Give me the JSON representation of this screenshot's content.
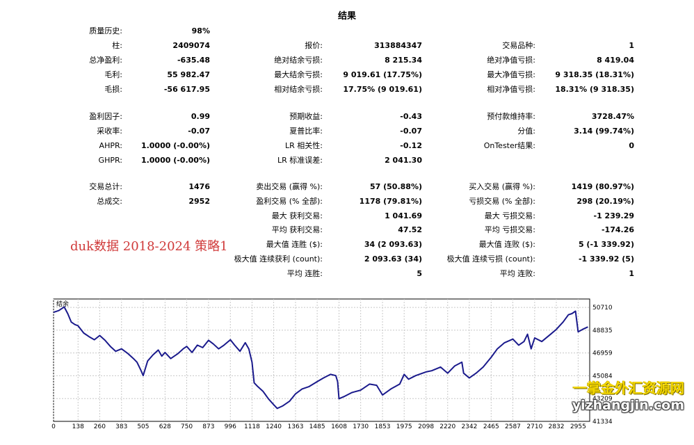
{
  "title": "结果",
  "col1": [
    {
      "label": "质量历史:",
      "value": "98%"
    },
    {
      "label": "柱:",
      "value": "2409074"
    },
    {
      "label": "总净盈利:",
      "value": "-635.48"
    },
    {
      "label": "毛利:",
      "value": "55 982.47"
    },
    {
      "label": "毛损:",
      "value": "-56 617.95"
    },
    {
      "label": "盈利因子:",
      "value": "0.99"
    },
    {
      "label": "采收率:",
      "value": "-0.07"
    },
    {
      "label": "AHPR:",
      "value": "1.0000 (-0.00%)"
    },
    {
      "label": "GHPR:",
      "value": "1.0000 (-0.00%)"
    },
    {
      "label": "交易总计:",
      "value": "1476"
    },
    {
      "label": "总成交:",
      "value": "2952"
    }
  ],
  "col2": [
    {
      "label": "报价:",
      "value": "313884347"
    },
    {
      "label": "绝对结余亏损:",
      "value": "8 215.34"
    },
    {
      "label": "最大结余亏损:",
      "value": "9 019.61 (17.75%)"
    },
    {
      "label": "相对结余亏损:",
      "value": "17.75% (9 019.61)"
    },
    {
      "label": "预期收益:",
      "value": "-0.43"
    },
    {
      "label": "夏普比率:",
      "value": "-0.07"
    },
    {
      "label": "LR 相关性:",
      "value": "-0.12"
    },
    {
      "label": "LR 标准误差:",
      "value": "2 041.30"
    },
    {
      "label": "卖出交易 (赢得 %):",
      "value": "57 (50.88%)"
    },
    {
      "label": "盈利交易 (% 全部):",
      "value": "1178 (79.81%)"
    },
    {
      "label": "最大 获利交易:",
      "value": "1 041.69"
    },
    {
      "label": "平均 获利交易:",
      "value": "47.52"
    },
    {
      "label": "最大值 连胜 ($):",
      "value": "34 (2 093.63)"
    },
    {
      "label": "极大值 连续获利 (count):",
      "value": "2 093.63 (34)"
    },
    {
      "label": "平均 连胜:",
      "value": "5"
    }
  ],
  "col3": [
    {
      "label": "交易品种:",
      "value": "1"
    },
    {
      "label": "绝对净值亏损:",
      "value": "8 419.04"
    },
    {
      "label": "最大净值亏损:",
      "value": "9 318.35 (18.31%)"
    },
    {
      "label": "相对净值亏损:",
      "value": "18.31% (9 318.35)"
    },
    {
      "label": "预付款维持率:",
      "value": "3728.47%"
    },
    {
      "label": "分值:",
      "value": "3.14 (99.74%)"
    },
    {
      "label": "OnTester结果:",
      "value": "0"
    },
    {
      "label": "买入交易 (赢得 %):",
      "value": "1419 (80.97%)"
    },
    {
      "label": "亏损交易 (% 全部):",
      "value": "298 (20.19%)"
    },
    {
      "label": "最大 亏损交易:",
      "value": "-1 239.29"
    },
    {
      "label": "平均 亏损交易:",
      "value": "-174.26"
    },
    {
      "label": "最大值 连败 ($):",
      "value": "5 (-1 339.92)"
    },
    {
      "label": "极大值 连续亏损 (count):",
      "value": "-1 339.92 (5)"
    },
    {
      "label": "平均 连败:",
      "value": "1"
    }
  ],
  "annotation": "duk数据 2018-2024 策略1",
  "watermark": {
    "cn": "一掌金外汇资源网",
    "url": "yizhangjin.com"
  },
  "chart_data": {
    "type": "line",
    "legend": "结余",
    "line_color": "#1a1a8c",
    "x_ticks": [
      "0",
      "138",
      "260",
      "383",
      "505",
      "628",
      "750",
      "873",
      "996",
      "1118",
      "1240",
      "1363",
      "1485",
      "1608",
      "1730",
      "1853",
      "1975",
      "2098",
      "2220",
      "2342",
      "2465",
      "2587",
      "2710",
      "2832",
      "2955"
    ],
    "y_ticks": [
      "50710",
      "48835",
      "46959",
      "45084",
      "43209",
      "41334"
    ],
    "xlim": [
      0,
      3020
    ],
    "ylim": [
      41334,
      51400
    ],
    "grid": true,
    "series": [
      {
        "x": [
          0,
          30,
          60,
          80,
          100,
          120,
          138,
          170,
          200,
          230,
          260,
          290,
          320,
          350,
          383,
          420,
          450,
          470,
          490,
          505,
          530,
          560,
          590,
          610,
          628,
          660,
          700,
          730,
          750,
          780,
          810,
          840,
          873,
          900,
          930,
          960,
          996,
          1020,
          1050,
          1080,
          1100,
          1118,
          1130,
          1150,
          1180,
          1210,
          1240,
          1260,
          1290,
          1330,
          1363,
          1400,
          1440,
          1485,
          1520,
          1560,
          1590,
          1600,
          1608,
          1640,
          1680,
          1730,
          1780,
          1820,
          1853,
          1900,
          1950,
          1975,
          2000,
          2040,
          2098,
          2130,
          2180,
          2220,
          2260,
          2300,
          2310,
          2342,
          2380,
          2420,
          2465,
          2500,
          2540,
          2587,
          2620,
          2650,
          2670,
          2690,
          2710,
          2750,
          2800,
          2832,
          2870,
          2900,
          2920,
          2940,
          2955,
          2980,
          3010
        ],
        "y": [
          50300,
          50450,
          50750,
          50200,
          49500,
          49300,
          49200,
          48600,
          48300,
          48050,
          48400,
          48000,
          47500,
          47100,
          47300,
          46900,
          46500,
          46200,
          45600,
          45100,
          46300,
          46800,
          47200,
          46700,
          47000,
          46500,
          46900,
          47300,
          47500,
          47000,
          47600,
          47400,
          48000,
          47700,
          47300,
          47600,
          48050,
          47600,
          47100,
          47800,
          47300,
          46200,
          44500,
          44200,
          43800,
          43200,
          42700,
          42400,
          42600,
          43000,
          43600,
          44000,
          44200,
          44600,
          44900,
          45200,
          45100,
          44600,
          43200,
          43400,
          43700,
          43900,
          44400,
          44300,
          43500,
          44000,
          44400,
          45200,
          44800,
          45100,
          45400,
          45500,
          45800,
          45300,
          45900,
          46200,
          45300,
          44900,
          45300,
          45800,
          46600,
          47300,
          47800,
          48100,
          47600,
          47900,
          48500,
          47300,
          48200,
          47900,
          48500,
          48900,
          49500,
          50100,
          50200,
          50400,
          48700,
          48900,
          49100
        ]
      }
    ]
  }
}
